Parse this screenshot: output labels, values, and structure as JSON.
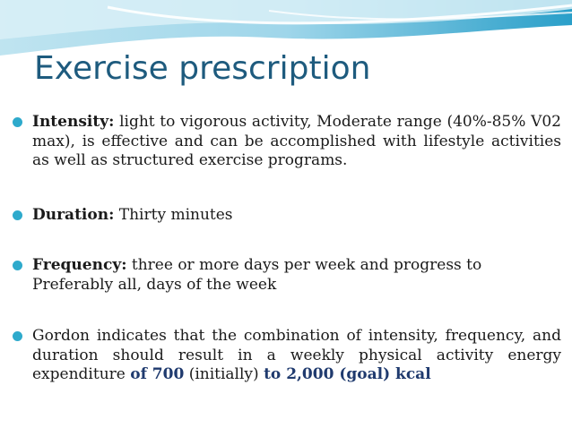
{
  "slide": {
    "title": "Exercise prescription",
    "bullets": [
      {
        "label": "Intensity:",
        "text": " light to vigorous activity, Moderate range (40%-85% V02 max), is effective and can be accomplished with lifestyle activities as well as structured exercise programs."
      },
      {
        "label": "Duration:",
        "text": " Thirty minutes"
      },
      {
        "label": "Frequency:",
        "text": " three or more days per week and progress to Preferably all, days of the week"
      },
      {
        "text_1": "Gordon indicates that the combination of intensity, frequency, and duration should result in a weekly physical activity energy expenditure ",
        "hl_1": "of 700",
        "text_2": " (initially) ",
        "hl_2": "to 2,000 (goal) kcal"
      }
    ]
  },
  "colors": {
    "title": "#1e5b7e",
    "bullet_dot": "#2eaacc",
    "highlight": "#1f3a6e",
    "wave_light": "#cdeaf3",
    "wave_mid": "#7fcbe3",
    "wave_dark": "#2a9fc9"
  }
}
